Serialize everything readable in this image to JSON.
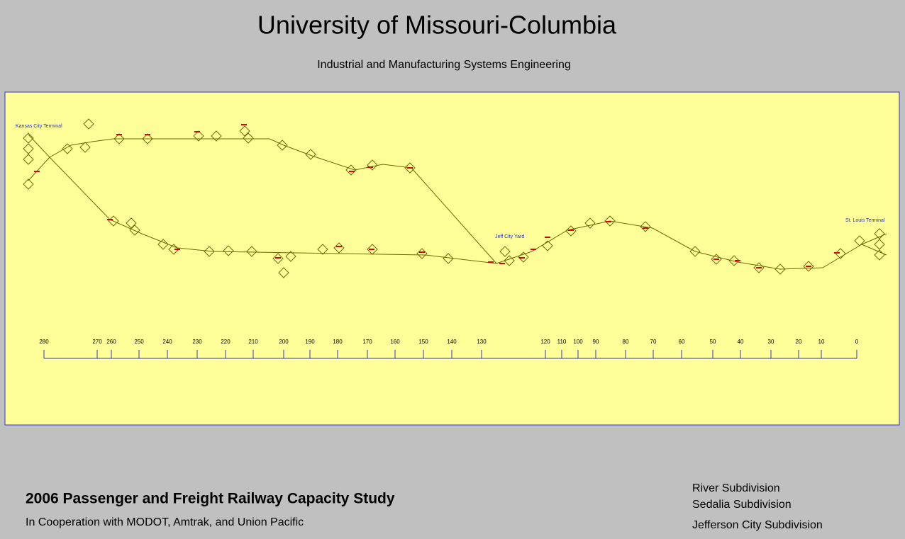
{
  "header": {
    "title": "University of Missouri-Columbia",
    "subtitle": "Industrial and Manufacturing Systems Engineering"
  },
  "network": {
    "terminals": [
      "Kansas City Terminal",
      "Jeff City Yard",
      "St. Louis Terminal"
    ]
  },
  "mile_scale": {
    "labels": [
      "280",
      "270",
      "260",
      "250",
      "240",
      "230",
      "220",
      "210",
      "200",
      "190",
      "180",
      "170",
      "160",
      "150",
      "140",
      "130",
      "120",
      "110",
      "100",
      "90",
      "80",
      "70",
      "60",
      "50",
      "40",
      "30",
      "20",
      "10",
      "0"
    ]
  },
  "footer": {
    "study_title": "2006 Passenger and Freight Railway Capacity Study",
    "cooperation": "In Cooperation with MODOT, Amtrak, and Union Pacific",
    "subdivisions": [
      "River Subdivision",
      "Sedalia Subdivision",
      "Jefferson City Subdivision"
    ]
  }
}
